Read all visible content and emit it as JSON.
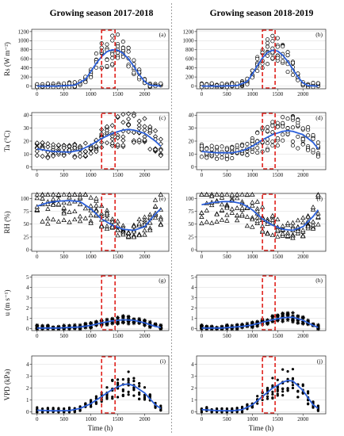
{
  "columns": [
    {
      "title": "Growing season 2017-2018"
    },
    {
      "title": "Growing season 2018-2019"
    }
  ],
  "colors": {
    "mean_line": "#2b5fd9",
    "box": "#e0201b",
    "points": "#000000",
    "divider": "#888888"
  },
  "chart_data": [
    {
      "type": "scatter",
      "row": 0,
      "col": 0,
      "panel_label": "(a)",
      "ylabel": "Rs (W m⁻²)",
      "xlabel": "",
      "xticks": [
        0,
        500,
        1000,
        1500,
        2000
      ],
      "xlim": [
        -100,
        2450
      ],
      "yticks": [
        0,
        200,
        400,
        600,
        800,
        1000,
        1200
      ],
      "ylim": [
        -60,
        1250
      ],
      "marker": "circle",
      "highlight_x": [
        1200,
        1450
      ],
      "mean_curve": {
        "x": [
          0,
          400,
          700,
          900,
          1000,
          1100,
          1200,
          1300,
          1400,
          1500,
          1600,
          1700,
          1800,
          1900,
          2000,
          2100,
          2300
        ],
        "y": [
          0,
          0,
          20,
          150,
          320,
          500,
          650,
          760,
          800,
          790,
          720,
          600,
          430,
          250,
          100,
          20,
          0
        ]
      }
    },
    {
      "type": "scatter",
      "row": 0,
      "col": 1,
      "panel_label": "(b)",
      "ylabel": "",
      "xlabel": "",
      "xticks": [
        0,
        500,
        1000,
        1500,
        2000
      ],
      "xlim": [
        -100,
        2450
      ],
      "yticks": [
        0,
        200,
        400,
        600,
        800,
        1000,
        1200
      ],
      "ylim": [
        -60,
        1250
      ],
      "marker": "circle",
      "highlight_x": [
        1200,
        1450
      ],
      "mean_curve": {
        "x": [
          0,
          400,
          700,
          900,
          1000,
          1100,
          1200,
          1300,
          1400,
          1500,
          1600,
          1700,
          1800,
          1900,
          2000,
          2100,
          2300
        ],
        "y": [
          0,
          0,
          10,
          100,
          260,
          450,
          620,
          740,
          790,
          770,
          680,
          540,
          370,
          200,
          70,
          10,
          0
        ]
      }
    },
    {
      "type": "scatter",
      "row": 1,
      "col": 0,
      "panel_label": "(c)",
      "ylabel": "Ta (°C)",
      "xlabel": "",
      "xticks": [
        0,
        500,
        1000,
        1500,
        2000
      ],
      "xlim": [
        -100,
        2450
      ],
      "yticks": [
        0,
        10,
        20,
        30,
        40
      ],
      "ylim": [
        -2,
        42
      ],
      "marker": "diamond",
      "highlight_x": [
        1200,
        1450
      ],
      "mean_curve": {
        "x": [
          0,
          300,
          600,
          800,
          1000,
          1200,
          1400,
          1600,
          1700,
          1800,
          2000,
          2200,
          2300
        ],
        "y": [
          14,
          12,
          11.5,
          13,
          17,
          22,
          26,
          28.5,
          29,
          28.5,
          26,
          20,
          16
        ]
      }
    },
    {
      "type": "scatter",
      "row": 1,
      "col": 1,
      "panel_label": "(d)",
      "ylabel": "",
      "xlabel": "",
      "xticks": [
        0,
        500,
        1000,
        1500,
        2000
      ],
      "xlim": [
        -100,
        2450
      ],
      "yticks": [
        0,
        10,
        20,
        30,
        40
      ],
      "ylim": [
        -2,
        42
      ],
      "marker": "circle",
      "highlight_x": [
        1200,
        1450
      ],
      "mean_curve": {
        "x": [
          0,
          300,
          600,
          800,
          1000,
          1200,
          1400,
          1600,
          1700,
          1800,
          2000,
          2200,
          2300
        ],
        "y": [
          12,
          11,
          11,
          12.5,
          16,
          21,
          25,
          27.5,
          28,
          27.5,
          25,
          19,
          14
        ]
      }
    },
    {
      "type": "scatter",
      "row": 2,
      "col": 0,
      "panel_label": "(e)",
      "ylabel": "RH (%)",
      "xlabel": "",
      "xticks": [
        0,
        500,
        1000,
        1500,
        2000
      ],
      "xlim": [
        -100,
        2450
      ],
      "yticks": [
        0,
        25,
        50,
        75,
        100
      ],
      "ylim": [
        -3,
        110
      ],
      "marker": "triangle",
      "highlight_x": [
        1200,
        1450
      ],
      "mean_curve": {
        "x": [
          0,
          200,
          400,
          600,
          800,
          1000,
          1200,
          1400,
          1600,
          1800,
          2000,
          2200,
          2300
        ],
        "y": [
          85,
          92,
          95,
          96,
          94,
          80,
          60,
          48,
          40,
          38,
          45,
          70,
          80
        ]
      }
    },
    {
      "type": "scatter",
      "row": 2,
      "col": 1,
      "panel_label": "(f)",
      "ylabel": "",
      "xlabel": "",
      "xticks": [
        0,
        500,
        1000,
        1500,
        2000
      ],
      "xlim": [
        -100,
        2450
      ],
      "yticks": [
        0,
        25,
        50,
        75,
        100
      ],
      "ylim": [
        -3,
        110
      ],
      "marker": "triangle",
      "highlight_x": [
        1200,
        1450
      ],
      "mean_curve": {
        "x": [
          0,
          200,
          400,
          600,
          800,
          1000,
          1200,
          1400,
          1600,
          1800,
          2000,
          2200,
          2300
        ],
        "y": [
          88,
          92,
          94,
          94,
          90,
          78,
          60,
          48,
          40,
          38,
          45,
          65,
          78
        ]
      }
    },
    {
      "type": "scatter",
      "row": 3,
      "col": 0,
      "panel_label": "(g)",
      "ylabel": "u (m s⁻¹)",
      "xlabel": "",
      "xticks": [
        0,
        500,
        1000,
        1500,
        2000
      ],
      "xlim": [
        -100,
        2450
      ],
      "yticks": [
        0,
        1,
        2,
        3,
        4,
        5
      ],
      "ylim": [
        -0.2,
        5.2
      ],
      "marker": "star",
      "highlight_x": [
        1200,
        1450
      ],
      "mean_curve": {
        "x": [
          0,
          400,
          800,
          1000,
          1200,
          1400,
          1600,
          1800,
          2000,
          2200,
          2300
        ],
        "y": [
          0.05,
          0.05,
          0.15,
          0.3,
          0.55,
          0.75,
          0.85,
          0.8,
          0.55,
          0.2,
          0.1
        ]
      }
    },
    {
      "type": "scatter",
      "row": 3,
      "col": 1,
      "panel_label": "(h)",
      "ylabel": "",
      "xlabel": "",
      "xticks": [
        0,
        500,
        1000,
        1500,
        2000
      ],
      "xlim": [
        -100,
        2450
      ],
      "yticks": [
        0,
        1,
        2,
        3,
        4,
        5
      ],
      "ylim": [
        -0.2,
        5.2
      ],
      "marker": "star",
      "highlight_x": [
        1200,
        1450
      ],
      "mean_curve": {
        "x": [
          0,
          400,
          800,
          1000,
          1200,
          1400,
          1600,
          1800,
          2000,
          2200,
          2300
        ],
        "y": [
          0.05,
          0.05,
          0.2,
          0.35,
          0.6,
          0.85,
          1.05,
          1.1,
          0.8,
          0.3,
          0.1
        ]
      }
    },
    {
      "type": "scatter",
      "row": 4,
      "col": 0,
      "panel_label": "(i)",
      "ylabel": "VPD (kPa)",
      "xlabel": "Time (h)",
      "xticks": [
        0,
        500,
        1000,
        1500,
        2000
      ],
      "xlim": [
        -100,
        2450
      ],
      "yticks": [
        0,
        1,
        2,
        3,
        4
      ],
      "ylim": [
        -0.15,
        4.7
      ],
      "marker": "dot",
      "highlight_x": [
        1200,
        1450
      ],
      "mean_curve": {
        "x": [
          0,
          300,
          600,
          800,
          1000,
          1200,
          1400,
          1600,
          1700,
          1800,
          2000,
          2200,
          2300
        ],
        "y": [
          0.15,
          0.1,
          0.12,
          0.3,
          0.7,
          1.3,
          1.9,
          2.3,
          2.35,
          2.2,
          1.6,
          0.6,
          0.3
        ]
      }
    },
    {
      "type": "scatter",
      "row": 4,
      "col": 1,
      "panel_label": "(j)",
      "ylabel": "",
      "xlabel": "Time (h)",
      "xticks": [
        0,
        500,
        1000,
        1500,
        2000
      ],
      "xlim": [
        -100,
        2450
      ],
      "yticks": [
        0,
        1,
        2,
        3,
        4
      ],
      "ylim": [
        -0.15,
        4.7
      ],
      "marker": "dot",
      "highlight_x": [
        1200,
        1450
      ],
      "mean_curve": {
        "x": [
          0,
          300,
          600,
          800,
          1000,
          1200,
          1400,
          1600,
          1700,
          1800,
          2000,
          2200,
          2300
        ],
        "y": [
          0.2,
          0.12,
          0.1,
          0.2,
          0.6,
          1.3,
          2.0,
          2.5,
          2.65,
          2.6,
          1.8,
          0.6,
          0.3
        ]
      }
    }
  ]
}
